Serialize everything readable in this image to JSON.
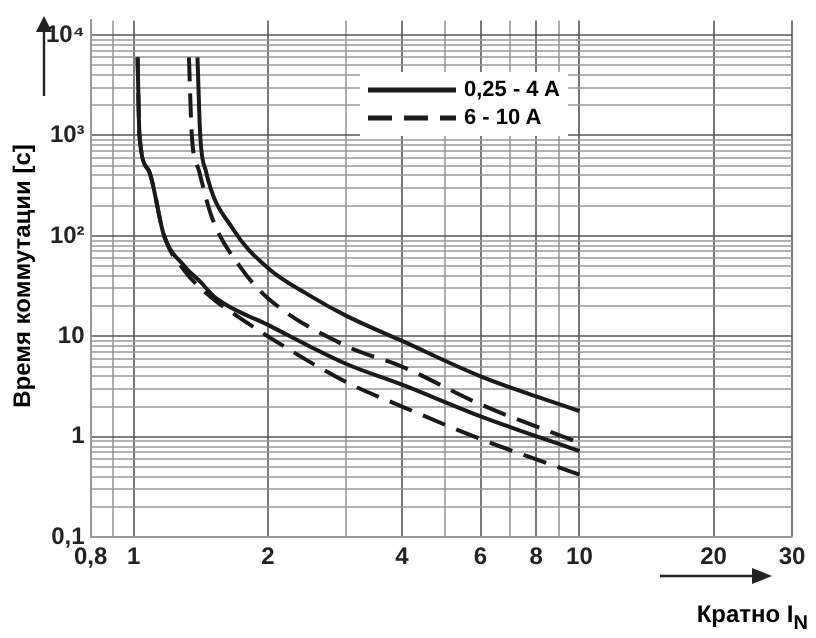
{
  "chart_data": {
    "type": "line",
    "xlabel": "Кратно I$_{N}$",
    "ylabel": "Время коммутации [с]",
    "log": "xy",
    "grid": true,
    "legend": "top",
    "marker": "none",
    "xlim": [
      0.8,
      30
    ],
    "ylim": [
      0.1,
      14000
    ],
    "xticks": [
      {
        "value": 0.8,
        "label": "0,8"
      },
      {
        "value": 0.9,
        "label": null
      },
      1,
      2,
      {
        "value": 3,
        "label": null
      },
      4,
      {
        "value": 5,
        "label": null
      },
      6,
      {
        "value": 7,
        "label": null
      },
      8,
      {
        "value": 9,
        "label": null
      },
      10,
      20,
      30
    ],
    "yticks": [
      {
        "value": 0.1,
        "label": "0,1"
      },
      {
        "value": 0.2,
        "label": null
      },
      {
        "value": 0.3,
        "label": null
      },
      {
        "value": 0.4,
        "label": null
      },
      {
        "value": 0.5,
        "label": null
      },
      {
        "value": 0.6,
        "label": null
      },
      {
        "value": 0.7,
        "label": null
      },
      {
        "value": 0.8,
        "label": null
      },
      {
        "value": 0.9,
        "label": null
      },
      1,
      {
        "value": 2,
        "label": null
      },
      {
        "value": 3,
        "label": null
      },
      {
        "value": 4,
        "label": null
      },
      {
        "value": 5,
        "label": null
      },
      {
        "value": 6,
        "label": null
      },
      {
        "value": 7,
        "label": null
      },
      {
        "value": 8,
        "label": null
      },
      {
        "value": 9,
        "label": null
      },
      10,
      {
        "value": 20,
        "label": null
      },
      {
        "value": 30,
        "label": null
      },
      {
        "value": 40,
        "label": null
      },
      {
        "value": 50,
        "label": null
      },
      {
        "value": 60,
        "label": null
      },
      {
        "value": 70,
        "label": null
      },
      {
        "value": 80,
        "label": null
      },
      {
        "value": 90,
        "label": null
      },
      {
        "value": 100,
        "label": "10²"
      },
      {
        "value": 200,
        "label": null
      },
      {
        "value": 300,
        "label": null
      },
      {
        "value": 400,
        "label": null
      },
      {
        "value": 500,
        "label": null
      },
      {
        "value": 600,
        "label": null
      },
      {
        "value": 700,
        "label": null
      },
      {
        "value": 800,
        "label": null
      },
      {
        "value": 900,
        "label": null
      },
      {
        "value": 1000,
        "label": "10³"
      },
      {
        "value": 2000,
        "label": null
      },
      {
        "value": 3000,
        "label": null
      },
      {
        "value": 4000,
        "label": null
      },
      {
        "value": 5000,
        "label": null
      },
      {
        "value": 6000,
        "label": null
      },
      {
        "value": 7000,
        "label": null
      },
      {
        "value": 8000,
        "label": null
      },
      {
        "value": 9000,
        "label": null
      },
      {
        "value": 10000,
        "label": "10⁴"
      }
    ],
    "series": [
      {
        "name": "0,25 - 4 A",
        "color": "#1a1a1a",
        "line_style": "solid",
        "x": [
          1.02,
          1.03,
          1.08,
          1.17,
          1.3,
          1.41,
          1.53,
          2,
          3,
          4,
          6,
          10
        ],
        "values": [
          6000,
          1000,
          450,
          100,
          50,
          35,
          24,
          13,
          5.3,
          3.3,
          1.6,
          0.72
        ]
      },
      {
        "color": "#1a1a1a",
        "line_style": "solid",
        "x": [
          1.39,
          1.41,
          1.45,
          1.67,
          2,
          2.5,
          3,
          4,
          6,
          10
        ],
        "values": [
          6000,
          1000,
          450,
          117,
          48,
          25,
          16,
          9,
          4,
          1.8
        ]
      },
      {
        "name": "6 - 10 A",
        "color": "#1a1a1a",
        "line_style": "dashed",
        "x": [
          1.02,
          1.03,
          1.08,
          1.17,
          1.3,
          1.5,
          1.67,
          2,
          3,
          4,
          6,
          10
        ],
        "values": [
          6000,
          1000,
          450,
          100,
          45,
          24,
          17,
          10,
          3.5,
          2,
          0.95,
          0.42
        ]
      },
      {
        "color": "#1a1a1a",
        "line_style": "dashed",
        "x": [
          1.33,
          1.35,
          1.4,
          1.5,
          1.74,
          2,
          3,
          4,
          6,
          10
        ],
        "values": [
          6000,
          1000,
          450,
          150,
          48,
          24,
          8,
          5,
          2.1,
          0.87
        ]
      }
    ]
  }
}
